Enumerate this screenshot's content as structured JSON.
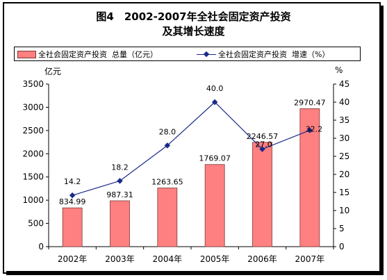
{
  "chart_data": {
    "type": "bar+line",
    "title_line1": "图4　2002-2007年全社会固定资产投资",
    "title_line2": "及其增长速度",
    "categories": [
      "2002年",
      "2003年",
      "2004年",
      "2005年",
      "2006年",
      "2007年"
    ],
    "series": [
      {
        "name": "全社会固定资产投资  总量（亿元）",
        "type": "bar",
        "axis": "left",
        "color": "#ff8080",
        "values": [
          834.99,
          987.31,
          1263.65,
          1769.07,
          2246.57,
          2970.47
        ],
        "labels": [
          "834.99",
          "987.31",
          "1263.65",
          "1769.07",
          "2246.57",
          "2970.47"
        ]
      },
      {
        "name": "全社会固定资产投资  增速（%）",
        "type": "line",
        "axis": "right",
        "color": "#1a2a8a",
        "values": [
          14.2,
          18.2,
          28.0,
          40.0,
          27.0,
          32.2
        ],
        "labels": [
          "14.2",
          "18.2",
          "28.0",
          "40.0",
          "27.0",
          "32.2"
        ]
      }
    ],
    "y_left": {
      "unit": "亿元",
      "ylim": [
        0,
        3500
      ],
      "ticks": [
        "0",
        "500",
        "1000",
        "1500",
        "2000",
        "2500",
        "3000",
        "3500"
      ]
    },
    "y_right": {
      "unit": "%",
      "ylim": [
        0,
        45
      ],
      "ticks": [
        "0",
        "5",
        "10",
        "15",
        "20",
        "25",
        "30",
        "35",
        "40",
        "45"
      ]
    },
    "grid": false,
    "legend_position": "top"
  }
}
